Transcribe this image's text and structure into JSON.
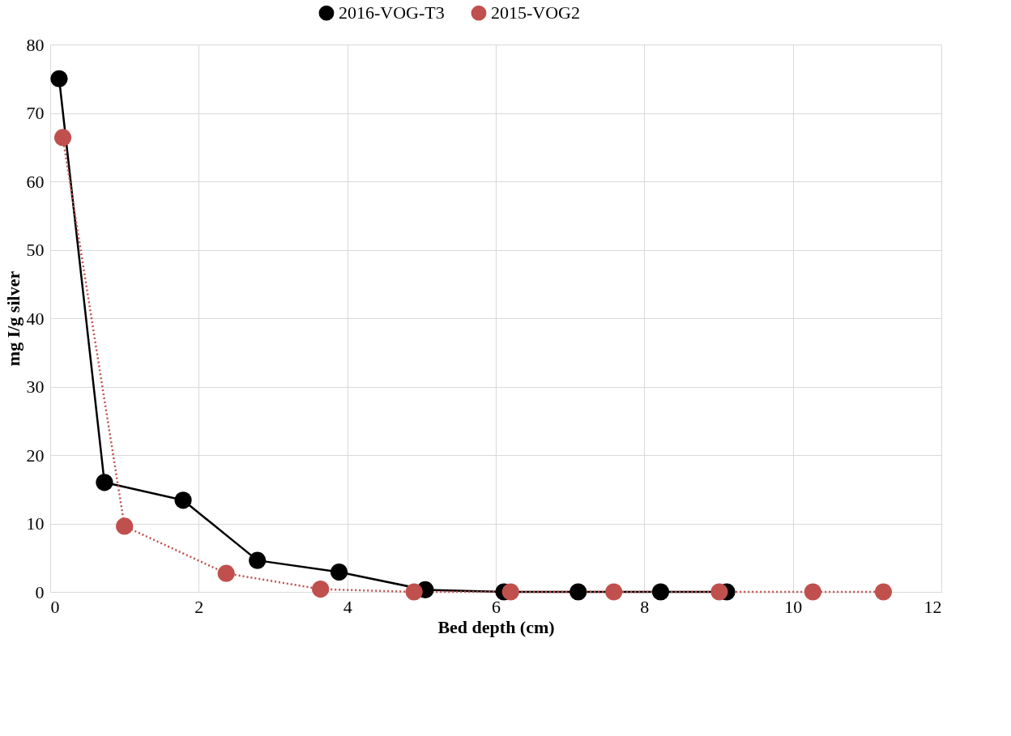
{
  "chart_data": {
    "type": "line",
    "xlabel": "Bed depth (cm)",
    "ylabel": "mg I/g silver",
    "xlim": [
      0,
      12
    ],
    "xticks": [
      0,
      2,
      4,
      6,
      8,
      10,
      12
    ],
    "ylim": [
      0,
      80
    ],
    "yticks": [
      0,
      10,
      20,
      30,
      40,
      50,
      60,
      70,
      80
    ],
    "grid": true,
    "legend": "top",
    "marker": "circle",
    "series": [
      {
        "name": "2016-VOG-T3",
        "color": "#000000",
        "line_style": "solid",
        "x": [
          0.12,
          0.73,
          1.79,
          2.79,
          3.89,
          5.05,
          6.11,
          7.11,
          8.22,
          9.11
        ],
        "values": [
          75,
          16,
          13.4,
          4.6,
          2.9,
          0.3,
          0,
          0,
          0,
          0
        ]
      },
      {
        "name": "2015-VOG2",
        "color": "#c0504d",
        "line_style": "dotted",
        "x": [
          0.17,
          1.0,
          2.37,
          3.64,
          4.9,
          6.2,
          7.59,
          9.01,
          10.27,
          11.22
        ],
        "values": [
          66.4,
          9.6,
          2.7,
          0.4,
          0,
          0,
          0,
          0,
          0,
          0
        ]
      }
    ]
  }
}
